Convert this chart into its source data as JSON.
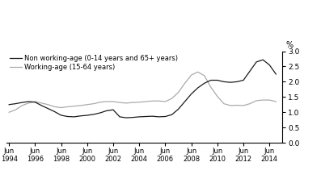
{
  "legend_labels": [
    "Non working-age (0-14 years and 65+ years)",
    "Working-age (15-64 years)"
  ],
  "ylabel": "%",
  "ylim": [
    0,
    3.0
  ],
  "yticks": [
    0,
    0.5,
    1.0,
    1.5,
    2.0,
    2.5,
    3.0
  ],
  "x_years": [
    1994,
    1996,
    1998,
    2000,
    2002,
    2004,
    2006,
    2008,
    2010,
    2012,
    2014
  ],
  "xlim": [
    1993.8,
    2015.0
  ],
  "non_working_x": [
    1994.0,
    1994.5,
    1995.0,
    1995.5,
    1996.0,
    1996.5,
    1997.0,
    1997.5,
    1998.0,
    1998.5,
    1999.0,
    1999.5,
    2000.0,
    2000.5,
    2001.0,
    2001.5,
    2002.0,
    2002.5,
    2003.0,
    2003.5,
    2004.0,
    2004.5,
    2005.0,
    2005.5,
    2006.0,
    2006.5,
    2007.0,
    2007.5,
    2008.0,
    2008.5,
    2009.0,
    2009.5,
    2010.0,
    2010.5,
    2011.0,
    2011.5,
    2012.0,
    2012.5,
    2013.0,
    2013.5,
    2014.0,
    2014.5
  ],
  "non_working_y": [
    1.25,
    1.28,
    1.32,
    1.35,
    1.33,
    1.22,
    1.12,
    1.02,
    0.9,
    0.86,
    0.85,
    0.88,
    0.9,
    0.93,
    0.98,
    1.05,
    1.08,
    0.85,
    0.82,
    0.83,
    0.85,
    0.86,
    0.87,
    0.85,
    0.86,
    0.92,
    1.1,
    1.35,
    1.6,
    1.8,
    1.95,
    2.05,
    2.05,
    2.0,
    1.98,
    2.0,
    2.05,
    2.35,
    2.65,
    2.72,
    2.55,
    2.25
  ],
  "working_x": [
    1994.0,
    1994.5,
    1995.0,
    1995.5,
    1996.0,
    1996.5,
    1997.0,
    1997.5,
    1998.0,
    1998.5,
    1999.0,
    1999.5,
    2000.0,
    2000.5,
    2001.0,
    2001.5,
    2002.0,
    2002.5,
    2003.0,
    2003.5,
    2004.0,
    2004.5,
    2005.0,
    2005.5,
    2006.0,
    2006.5,
    2007.0,
    2007.5,
    2008.0,
    2008.5,
    2009.0,
    2009.5,
    2010.0,
    2010.5,
    2011.0,
    2011.5,
    2012.0,
    2012.5,
    2013.0,
    2013.5,
    2014.0,
    2014.5
  ],
  "working_y": [
    1.0,
    1.08,
    1.22,
    1.3,
    1.35,
    1.3,
    1.25,
    1.18,
    1.15,
    1.18,
    1.2,
    1.22,
    1.25,
    1.28,
    1.33,
    1.35,
    1.35,
    1.32,
    1.3,
    1.32,
    1.33,
    1.35,
    1.37,
    1.37,
    1.35,
    1.45,
    1.65,
    1.95,
    2.22,
    2.32,
    2.2,
    1.82,
    1.52,
    1.28,
    1.22,
    1.23,
    1.22,
    1.28,
    1.38,
    1.4,
    1.4,
    1.35
  ],
  "non_working_color": "#1a1a1a",
  "working_color": "#aaaaaa",
  "line_width": 0.9,
  "background_color": "#ffffff"
}
